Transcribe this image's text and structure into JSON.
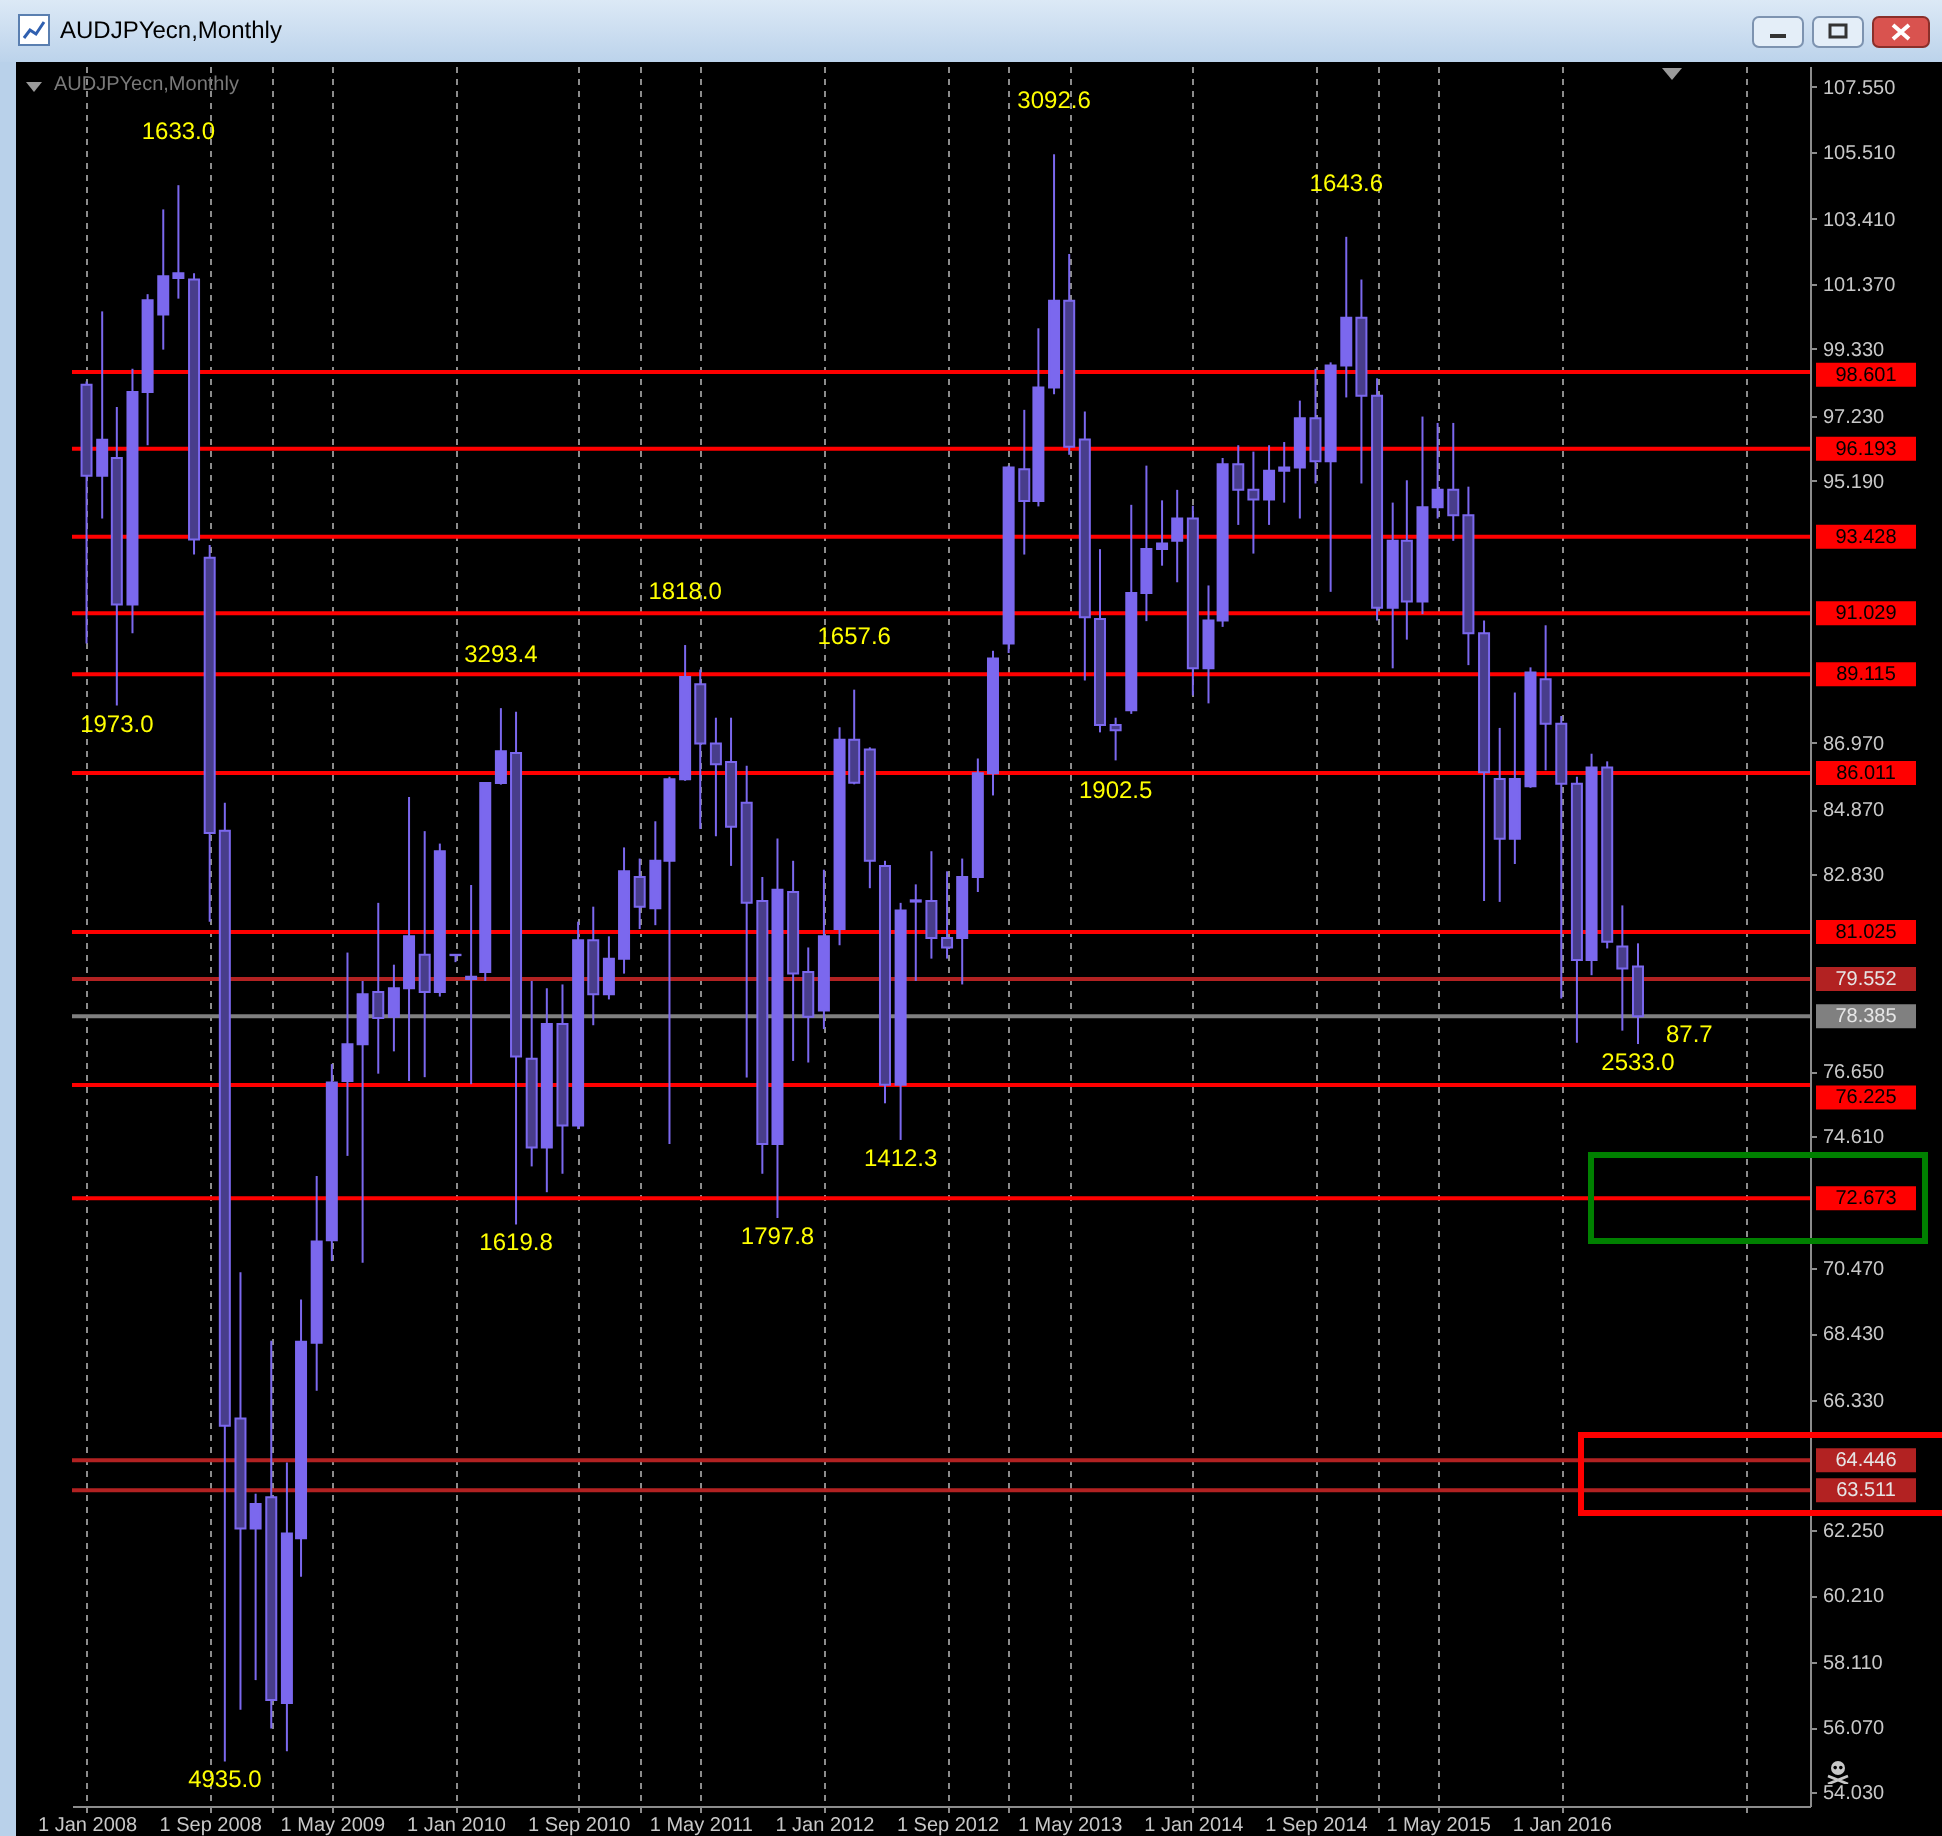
{
  "chart_data": {
    "type": "candlestick",
    "title": "AUDJPYecn,Monthly",
    "subtitle": "AUDJPYecn,Monthly",
    "color": "#7b68ee",
    "x": [
      "2008-01",
      "2008-02",
      "2008-03",
      "2008-04",
      "2008-05",
      "2008-06",
      "2008-07",
      "2008-08",
      "2008-09",
      "2008-10",
      "2008-11",
      "2008-12",
      "2009-01",
      "2009-02",
      "2009-03",
      "2009-04",
      "2009-05",
      "2009-06",
      "2009-07",
      "2009-08",
      "2009-09",
      "2009-10",
      "2009-11",
      "2009-12",
      "2010-01",
      "2010-02",
      "2010-03",
      "2010-04",
      "2010-05",
      "2010-06",
      "2010-07",
      "2010-08",
      "2010-09",
      "2010-10",
      "2010-11",
      "2010-12",
      "2011-01",
      "2011-02",
      "2011-03",
      "2011-04",
      "2011-05",
      "2011-06",
      "2011-07",
      "2011-08",
      "2011-09",
      "2011-10",
      "2011-11",
      "2011-12",
      "2012-01",
      "2012-02",
      "2012-03",
      "2012-04",
      "2012-05",
      "2012-06",
      "2012-07",
      "2012-08",
      "2012-09",
      "2012-10",
      "2012-11",
      "2012-12",
      "2013-01",
      "2013-02",
      "2013-03",
      "2013-04",
      "2013-05",
      "2013-06",
      "2013-07",
      "2013-08",
      "2013-09",
      "2013-10",
      "2013-11",
      "2013-12",
      "2014-01",
      "2014-02",
      "2014-03",
      "2014-04",
      "2014-05",
      "2014-06",
      "2014-07",
      "2014-08",
      "2014-09",
      "2014-10",
      "2014-11",
      "2014-12",
      "2015-01",
      "2015-02",
      "2015-03",
      "2015-04",
      "2015-05",
      "2015-06",
      "2015-07",
      "2015-08",
      "2015-09",
      "2015-10",
      "2015-11",
      "2015-12",
      "2016-01",
      "2016-02",
      "2016-03",
      "2016-04",
      "2016-05",
      "2016-06"
    ],
    "ohlc": [
      [
        98.2,
        98.3,
        90.08,
        95.34
      ],
      [
        95.34,
        100.5,
        94.0,
        96.47
      ],
      [
        95.9,
        97.5,
        88.13,
        91.3
      ],
      [
        91.3,
        98.7,
        90.4,
        97.97
      ],
      [
        97.97,
        101.04,
        96.3,
        100.85
      ],
      [
        100.4,
        103.7,
        99.3,
        101.6
      ],
      [
        101.55,
        104.46,
        100.9,
        101.7
      ],
      [
        101.5,
        101.7,
        92.87,
        93.34
      ],
      [
        92.77,
        93.17,
        81.35,
        84.13
      ],
      [
        84.2,
        85.08,
        55.0,
        65.53
      ],
      [
        65.76,
        70.35,
        56.62,
        62.31
      ],
      [
        62.31,
        63.4,
        57.55,
        63.08
      ],
      [
        63.29,
        68.2,
        56.03,
        56.93
      ],
      [
        56.83,
        64.38,
        55.32,
        62.15
      ],
      [
        62.0,
        69.49,
        60.79,
        68.17
      ],
      [
        68.14,
        73.37,
        66.63,
        71.31
      ],
      [
        71.35,
        76.88,
        70.7,
        76.3
      ],
      [
        76.35,
        80.38,
        74.0,
        77.5
      ],
      [
        77.5,
        79.49,
        70.65,
        79.07
      ],
      [
        79.14,
        81.94,
        76.58,
        78.33
      ],
      [
        78.37,
        80.0,
        77.28,
        79.26
      ],
      [
        79.26,
        85.26,
        76.35,
        80.89
      ],
      [
        80.31,
        84.19,
        76.47,
        79.14
      ],
      [
        79.14,
        83.8,
        79.0,
        83.56
      ],
      [
        80.3,
        80.32,
        80.08,
        80.31
      ],
      [
        79.55,
        82.5,
        76.25,
        79.62
      ],
      [
        79.77,
        85.7,
        79.49,
        85.7
      ],
      [
        85.7,
        88.05,
        85.65,
        86.7
      ],
      [
        86.64,
        87.94,
        71.85,
        77.12
      ],
      [
        77.05,
        79.49,
        73.67,
        74.26
      ],
      [
        74.26,
        79.26,
        72.86,
        78.14
      ],
      [
        78.14,
        79.38,
        73.44,
        74.95
      ],
      [
        74.95,
        81.35,
        74.84,
        80.77
      ],
      [
        80.77,
        81.82,
        78.1,
        79.07
      ],
      [
        79.07,
        80.89,
        78.91,
        80.19
      ],
      [
        80.19,
        83.68,
        79.72,
        82.93
      ],
      [
        82.75,
        83.33,
        81.12,
        81.82
      ],
      [
        81.77,
        84.5,
        81.24,
        83.26
      ],
      [
        83.26,
        85.9,
        74.37,
        85.82
      ],
      [
        85.82,
        90.03,
        85.77,
        89.03
      ],
      [
        88.8,
        89.26,
        84.26,
        86.94
      ],
      [
        86.94,
        87.75,
        84.03,
        86.29
      ],
      [
        86.36,
        87.75,
        83.1,
        84.33
      ],
      [
        85.08,
        86.24,
        76.46,
        81.94
      ],
      [
        82.0,
        82.75,
        73.44,
        74.37
      ],
      [
        74.37,
        83.96,
        72.05,
        82.35
      ],
      [
        82.28,
        83.26,
        76.98,
        79.72
      ],
      [
        79.77,
        80.54,
        76.93,
        78.37
      ],
      [
        78.56,
        82.98,
        77.98,
        80.89
      ],
      [
        81.12,
        87.45,
        80.61,
        87.06
      ],
      [
        87.06,
        88.63,
        85.66,
        85.71
      ],
      [
        86.75,
        86.82,
        82.4,
        83.26
      ],
      [
        83.1,
        83.26,
        75.65,
        76.23
      ],
      [
        76.23,
        81.94,
        74.5,
        81.7
      ],
      [
        81.98,
        82.52,
        79.49,
        82.02
      ],
      [
        82.0,
        83.56,
        80.19,
        80.84
      ],
      [
        80.84,
        82.93,
        80.19,
        80.54
      ],
      [
        80.84,
        83.33,
        79.38,
        82.75
      ],
      [
        82.75,
        86.47,
        82.28,
        86.01
      ],
      [
        86.01,
        89.85,
        85.31,
        89.61
      ],
      [
        90.08,
        95.66,
        89.78,
        95.6
      ],
      [
        95.55,
        97.41,
        92.87,
        94.55
      ],
      [
        94.55,
        99.97,
        94.38,
        98.11
      ],
      [
        98.11,
        105.43,
        97.9,
        100.83
      ],
      [
        100.83,
        102.3,
        96.0,
        96.25
      ],
      [
        96.48,
        97.36,
        88.92,
        90.9
      ],
      [
        90.85,
        93.04,
        87.29,
        87.52
      ],
      [
        87.52,
        87.75,
        86.41,
        87.36
      ],
      [
        87.98,
        94.43,
        87.87,
        91.66
      ],
      [
        91.66,
        95.66,
        90.78,
        93.04
      ],
      [
        93.04,
        94.57,
        92.52,
        93.22
      ],
      [
        93.3,
        94.9,
        92.0,
        94.0
      ],
      [
        94.0,
        94.4,
        88.45,
        89.3
      ],
      [
        89.3,
        91.9,
        88.2,
        90.8
      ],
      [
        90.8,
        95.9,
        90.6,
        95.7
      ],
      [
        95.7,
        96.3,
        93.8,
        94.9
      ],
      [
        94.9,
        96.1,
        92.9,
        94.6
      ],
      [
        94.6,
        96.3,
        93.8,
        95.5
      ],
      [
        95.5,
        96.4,
        94.5,
        95.6
      ],
      [
        95.6,
        97.7,
        94.0,
        97.15
      ],
      [
        97.15,
        98.7,
        95.1,
        95.8
      ],
      [
        95.8,
        98.9,
        91.7,
        98.8
      ],
      [
        98.8,
        102.84,
        97.8,
        100.3
      ],
      [
        100.3,
        101.5,
        95.1,
        97.85
      ],
      [
        97.85,
        98.4,
        90.8,
        91.2
      ],
      [
        91.2,
        94.5,
        89.3,
        93.3
      ],
      [
        93.3,
        95.2,
        90.2,
        91.4
      ],
      [
        91.4,
        97.2,
        91.0,
        94.35
      ],
      [
        94.35,
        97.0,
        94.0,
        94.9
      ],
      [
        94.9,
        97.0,
        93.3,
        94.1
      ],
      [
        94.1,
        95.0,
        89.4,
        90.4
      ],
      [
        90.4,
        90.8,
        82.0,
        86.04
      ],
      [
        85.83,
        87.43,
        81.97,
        83.95
      ],
      [
        83.95,
        88.54,
        83.16,
        85.83
      ],
      [
        85.6,
        89.33,
        85.55,
        89.17
      ],
      [
        88.96,
        90.65,
        86.1,
        87.56
      ],
      [
        87.56,
        87.8,
        78.94,
        85.68
      ],
      [
        85.68,
        85.9,
        77.55,
        80.15
      ],
      [
        80.15,
        86.62,
        79.67,
        86.19
      ],
      [
        86.19,
        86.38,
        80.51,
        80.72
      ],
      [
        80.57,
        81.86,
        77.93,
        79.88
      ],
      [
        79.94,
        80.67,
        77.51,
        78.385
      ]
    ],
    "colors": [
      "#483d8b",
      "#7b68ee",
      "#483d8b",
      "#7b68ee",
      "#7b68ee",
      "#7b68ee",
      "#7b68ee",
      "#483d8b",
      "#483d8b",
      "#483d8b",
      "#483d8b",
      "#7b68ee",
      "#483d8b",
      "#7b68ee",
      "#7b68ee",
      "#7b68ee",
      "#7b68ee",
      "#7b68ee",
      "#7b68ee",
      "#483d8b",
      "#7b68ee",
      "#7b68ee",
      "#483d8b",
      "#7b68ee",
      "#7b68ee",
      "#7b68ee",
      "#7b68ee",
      "#7b68ee",
      "#483d8b",
      "#483d8b",
      "#7b68ee",
      "#483d8b",
      "#7b68ee",
      "#483d8b",
      "#7b68ee",
      "#7b68ee",
      "#483d8b",
      "#7b68ee",
      "#7b68ee",
      "#7b68ee",
      "#483d8b",
      "#483d8b",
      "#483d8b",
      "#483d8b",
      "#483d8b",
      "#7b68ee",
      "#483d8b",
      "#483d8b",
      "#7b68ee",
      "#7b68ee",
      "#483d8b",
      "#483d8b",
      "#483d8b",
      "#7b68ee",
      "#7b68ee",
      "#483d8b",
      "#483d8b",
      "#7b68ee",
      "#7b68ee",
      "#7b68ee",
      "#7b68ee",
      "#483d8b",
      "#7b68ee",
      "#7b68ee",
      "#483d8b",
      "#483d8b",
      "#483d8b",
      "#483d8b",
      "#7b68ee",
      "#7b68ee",
      "#7b68ee",
      "#7b68ee",
      "#483d8b",
      "#7b68ee",
      "#7b68ee",
      "#483d8b",
      "#483d8b",
      "#7b68ee",
      "#7b68ee",
      "#7b68ee",
      "#483d8b",
      "#7b68ee",
      "#7b68ee",
      "#483d8b",
      "#483d8b",
      "#7b68ee",
      "#483d8b",
      "#7b68ee",
      "#7b68ee",
      "#483d8b",
      "#483d8b",
      "#483d8b",
      "#483d8b",
      "#7b68ee",
      "#7b68ee",
      "#483d8b",
      "#483d8b",
      "#483d8b",
      "#7b68ee",
      "#483d8b",
      "#483d8b",
      "#483d8b"
    ],
    "xlim": [
      "2007-12-23",
      "2017-04-18"
    ],
    "xticks": [
      {
        "value": "2008-01-01",
        "label": "1 Jan 2008"
      },
      {
        "value": "2008-09-01",
        "label": "1 Sep 2008"
      },
      {
        "value": "2009-01-01",
        "label": null
      },
      {
        "value": "2009-05-01",
        "label": "1 May 2009"
      },
      {
        "value": "2010-01-01",
        "label": "1 Jan 2010"
      },
      {
        "value": "2010-09-01",
        "label": "1 Sep 2010"
      },
      {
        "value": "2011-01-01",
        "label": null
      },
      {
        "value": "2011-05-01",
        "label": "1 May 2011"
      },
      {
        "value": "2012-01-01",
        "label": "1 Jan 2012"
      },
      {
        "value": "2012-09-01",
        "label": "1 Sep 2012"
      },
      {
        "value": "2013-01-01",
        "label": null
      },
      {
        "value": "2013-05-01",
        "label": "1 May 2013"
      },
      {
        "value": "2014-01-01",
        "label": "1 Jan 2014"
      },
      {
        "value": "2014-09-01",
        "label": "1 Sep 2014"
      },
      {
        "value": "2015-01-01",
        "label": null
      },
      {
        "value": "2015-05-01",
        "label": "1 May 2015"
      },
      {
        "value": "2016-01-01",
        "label": "1 Jan 2016"
      },
      {
        "value": "2017-01-01",
        "label": null
      }
    ],
    "ylim": [
      53.6,
      108.2
    ],
    "yticks": [
      {
        "value": 107.55,
        "label": "107.550"
      },
      {
        "value": 105.51,
        "label": "105.510"
      },
      {
        "value": 103.41,
        "label": "103.410"
      },
      {
        "value": 101.37,
        "label": "101.370"
      },
      {
        "value": 99.33,
        "label": "99.330"
      },
      {
        "value": 97.23,
        "label": "97.230"
      },
      {
        "value": 95.19,
        "label": "95.190"
      },
      {
        "value": 86.97,
        "label": "86.970"
      },
      {
        "value": 84.87,
        "label": "84.870"
      },
      {
        "value": 82.83,
        "label": "82.830"
      },
      {
        "value": 76.65,
        "label": "76.650"
      },
      {
        "value": 74.61,
        "label": "74.610"
      },
      {
        "value": 70.47,
        "label": "70.470"
      },
      {
        "value": 68.43,
        "label": "68.430"
      },
      {
        "value": 66.33,
        "label": "66.330"
      },
      {
        "value": 62.25,
        "label": "62.250"
      },
      {
        "value": 60.21,
        "label": "60.210"
      },
      {
        "value": 58.11,
        "label": "58.110"
      },
      {
        "value": 56.07,
        "label": "56.070"
      },
      {
        "value": 54.03,
        "label": "54.030"
      }
    ],
    "grid": "x",
    "ref_lines": [
      {
        "axis": "y",
        "value": 98.601,
        "label": "98.601",
        "color": "#ff0000"
      },
      {
        "axis": "y",
        "value": 96.193,
        "label": "96.193",
        "color": "#ff0000"
      },
      {
        "axis": "y",
        "value": 93.428,
        "label": "93.428",
        "color": "#ff0000"
      },
      {
        "axis": "y",
        "value": 91.029,
        "label": "91.029",
        "color": "#ff0000"
      },
      {
        "axis": "y",
        "value": 89.115,
        "label": "89.115",
        "color": "#ff0000"
      },
      {
        "axis": "y",
        "value": 86.011,
        "label": "86.011",
        "color": "#ff0000"
      },
      {
        "axis": "y",
        "value": 81.025,
        "label": "81.025",
        "color": "#ff0000"
      },
      {
        "axis": "y",
        "value": 79.552,
        "label": "79.552",
        "color": "#b22222"
      },
      {
        "axis": "y",
        "value": 78.385,
        "label": "78.385",
        "color": "#808080"
      },
      {
        "axis": "y",
        "value": 76.225,
        "label": "76.225",
        "color": "#ff0000"
      },
      {
        "axis": "y",
        "value": 72.673,
        "label": "72.673",
        "color": "#ff0000"
      },
      {
        "axis": "y",
        "value": 64.446,
        "label": "64.446",
        "color": "#b22222"
      },
      {
        "axis": "y",
        "value": 63.511,
        "label": "63.511",
        "color": "#b22222"
      }
    ],
    "annotations": [
      {
        "text": "1633.0",
        "x": "2008-07",
        "y": 104.46
      },
      {
        "text": "1973.0",
        "x": "2008-03",
        "y": 88.13
      },
      {
        "text": "4935.0",
        "x": "2008-10",
        "y": 55.0
      },
      {
        "text": "3293.4",
        "x": "2010-04",
        "y": 88.05
      },
      {
        "text": "1619.8",
        "x": "2010-05",
        "y": 71.85
      },
      {
        "text": "1818.0",
        "x": "2011-04",
        "y": 90.03
      },
      {
        "text": "1797.8",
        "x": "2011-10",
        "y": 72.05
      },
      {
        "text": "1657.6",
        "x": "2012-03",
        "y": 88.63
      },
      {
        "text": "1412.3",
        "x": "2012-06",
        "y": 74.5
      },
      {
        "text": "3092.6",
        "x": "2013-04",
        "y": 105.43
      },
      {
        "text": "1902.5",
        "x": "2013-08",
        "y": 86.41
      },
      {
        "text": "1643.6",
        "x": "2014-11",
        "y": 102.84
      },
      {
        "text": "2533.0",
        "x": "2016-06",
        "y": 77.51
      },
      {
        "text": "87.7",
        "x": "2016-06",
        "y": 78.385
      }
    ]
  }
}
